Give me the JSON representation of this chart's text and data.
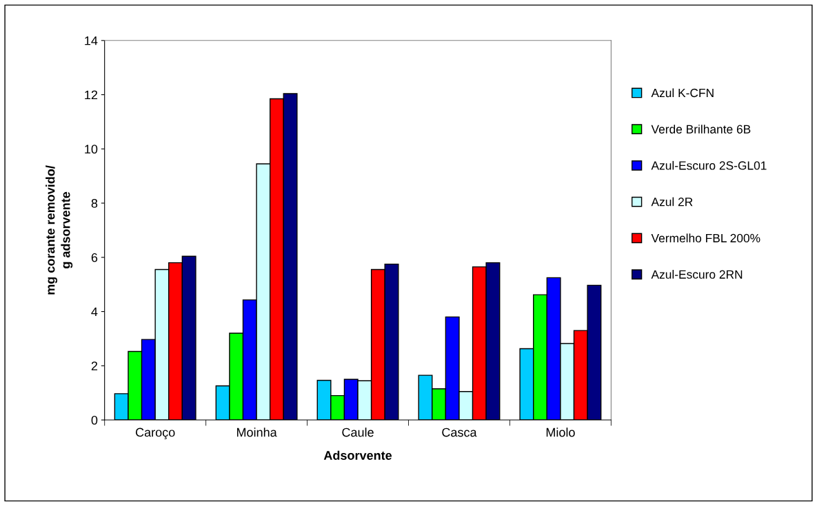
{
  "chart_data": {
    "type": "bar",
    "xlabel": "Adsorvente",
    "ylabel": "mg corante removido/\ng adsorvente",
    "categories": [
      "Caroço",
      "Moinha",
      "Caule",
      "Casca",
      "Miolo"
    ],
    "series": [
      {
        "name": "Azul K-CFN",
        "color": "#00ccff",
        "values": [
          0.97,
          1.26,
          1.46,
          1.65,
          2.63
        ]
      },
      {
        "name": "Verde Brilhante 6B",
        "color": "#00ff00",
        "values": [
          2.53,
          3.2,
          0.9,
          1.15,
          4.62
        ]
      },
      {
        "name": "Azul-Escuro 2S-GL01",
        "color": "#0000ff",
        "values": [
          2.97,
          4.43,
          1.5,
          3.8,
          5.25
        ]
      },
      {
        "name": "Azul 2R",
        "color": "#ccffff",
        "values": [
          5.55,
          9.45,
          1.45,
          1.05,
          2.82
        ]
      },
      {
        "name": "Vermelho FBL 200%",
        "color": "#ff0000",
        "values": [
          5.8,
          11.85,
          5.55,
          5.65,
          3.3
        ]
      },
      {
        "name": "Azul-Escuro 2RN",
        "color": "#000080",
        "values": [
          6.04,
          12.04,
          5.75,
          5.8,
          4.97
        ]
      }
    ],
    "ylim": [
      0,
      14
    ],
    "yticks": [
      0,
      2,
      4,
      6,
      8,
      10,
      12,
      14
    ],
    "grid": false,
    "legend": "right"
  }
}
